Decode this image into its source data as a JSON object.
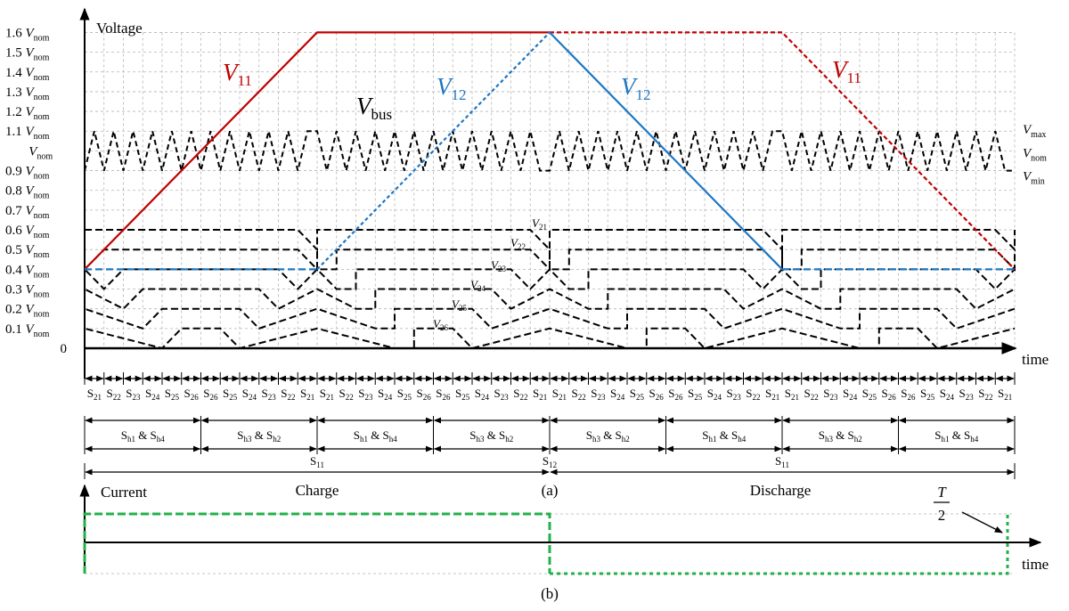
{
  "top_chart": {
    "y_title": "Voltage",
    "x_title": "time",
    "y_ticks": [
      {
        "num": "1.6",
        "v": "V",
        "sub": "nom",
        "value": 1.6
      },
      {
        "num": "1.5",
        "v": "V",
        "sub": "nom",
        "value": 1.5
      },
      {
        "num": "1.4",
        "v": "V",
        "sub": "nom",
        "value": 1.4
      },
      {
        "num": "1.3",
        "v": "V",
        "sub": "nom",
        "value": 1.3
      },
      {
        "num": "1.2",
        "v": "V",
        "sub": "nom",
        "value": 1.2
      },
      {
        "num": "1.1",
        "v": "V",
        "sub": "nom",
        "value": 1.1
      },
      {
        "num": "",
        "v": "V",
        "sub": "nom",
        "value": 1.0
      },
      {
        "num": "0.9",
        "v": "V",
        "sub": "nom",
        "value": 0.9
      },
      {
        "num": "0.8",
        "v": "V",
        "sub": "nom",
        "value": 0.8
      },
      {
        "num": "0.7",
        "v": "V",
        "sub": "nom",
        "value": 0.7
      },
      {
        "num": "0.6",
        "v": "V",
        "sub": "nom",
        "value": 0.6
      },
      {
        "num": "0.5",
        "v": "V",
        "sub": "nom",
        "value": 0.5
      },
      {
        "num": "0.4",
        "v": "V",
        "sub": "nom",
        "value": 0.4
      },
      {
        "num": "0.3",
        "v": "V",
        "sub": "nom",
        "value": 0.3
      },
      {
        "num": "0.2",
        "v": "V",
        "sub": "nom",
        "value": 0.2
      },
      {
        "num": "0.1",
        "v": "V",
        "sub": "nom",
        "value": 0.1
      },
      {
        "num": "0",
        "v": "",
        "sub": "",
        "value": 0
      }
    ],
    "right_labels": [
      {
        "v": "V",
        "sub": "max",
        "value": 1.1
      },
      {
        "v": "V",
        "sub": "nom",
        "value": 1.0
      },
      {
        "v": "V",
        "sub": "min",
        "value": 0.9
      }
    ],
    "curve_labels": {
      "v11_left": {
        "v": "V",
        "sub": "11"
      },
      "v12_mid": {
        "v": "V",
        "sub": "12"
      },
      "v12_right": {
        "v": "V",
        "sub": "12"
      },
      "v11_right": {
        "v": "V",
        "sub": "11"
      },
      "vbus": {
        "v": "V",
        "sub": "bus"
      }
    },
    "small_labels": [
      {
        "v": "V",
        "sub": "21"
      },
      {
        "v": "V",
        "sub": "22"
      },
      {
        "v": "V",
        "sub": "23"
      },
      {
        "v": "V",
        "sub": "24"
      },
      {
        "v": "V",
        "sub": "25"
      },
      {
        "v": "V",
        "sub": "26"
      }
    ],
    "colors": {
      "v11": "#c00000",
      "v12": "#1f77c4",
      "cells": "#000000",
      "grid": "#b4b4b4",
      "current": "#22b04b"
    }
  },
  "sequence": [
    "21",
    "22",
    "23",
    "24",
    "25",
    "26",
    "26",
    "25",
    "24",
    "23",
    "22",
    "21",
    "21",
    "22",
    "23",
    "24",
    "25",
    "26",
    "26",
    "25",
    "24",
    "23",
    "22",
    "21",
    "21",
    "22",
    "23",
    "24",
    "25",
    "26",
    "26",
    "25",
    "24",
    "23",
    "22",
    "21",
    "21",
    "22",
    "23",
    "24",
    "25",
    "26",
    "26",
    "25",
    "24",
    "23",
    "22",
    "21"
  ],
  "sequence_prefix": "S",
  "h_row": [
    {
      "a": "h1",
      "b": "h4"
    },
    {
      "a": "h3",
      "b": "h2"
    },
    {
      "a": "h1",
      "b": "h4"
    },
    {
      "a": "h3",
      "b": "h2"
    },
    {
      "a": "h3",
      "b": "h2"
    },
    {
      "a": "h1",
      "b": "h4"
    },
    {
      "a": "h3",
      "b": "h2"
    },
    {
      "a": "h1",
      "b": "h4"
    }
  ],
  "h_joiner": "&",
  "s_row": [
    {
      "s": "S",
      "sub": "11"
    },
    {
      "s": "S",
      "sub": "12"
    },
    {
      "s": "S",
      "sub": "11"
    }
  ],
  "caption_a": "(a)",
  "caption_b": "(b)",
  "charge_label": "Charge",
  "discharge_label": "Discharge",
  "bottom_chart": {
    "y_title": "Current",
    "x_title": "time",
    "period_num": "T",
    "period_den": "2"
  }
}
